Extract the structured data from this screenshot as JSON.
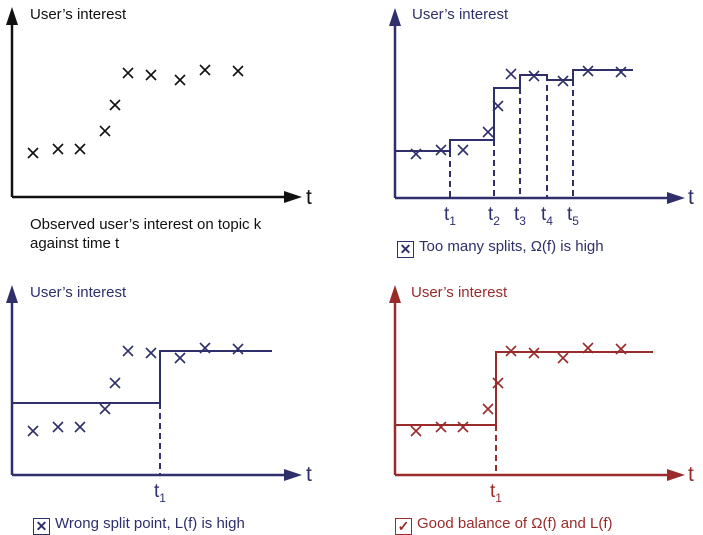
{
  "colors": {
    "black": "#111111",
    "navy": "#2e2f6b",
    "red": "#9a2b2b"
  },
  "panels": [
    {
      "ylabel": "User’s interest",
      "xlabel": "t",
      "caption_line1": "Observed user’s interest on topic k",
      "caption_line2": "against time t"
    },
    {
      "ylabel": "User’s interest",
      "xlabel": "t",
      "ticks": [
        "t",
        "t",
        "t",
        "t",
        "t"
      ],
      "tick_subs": [
        "1",
        "2",
        "3",
        "4",
        "5"
      ],
      "caption_icon": "x-box-icon",
      "caption": "Too many splits, Ω(f) is high"
    },
    {
      "ylabel": "User’s interest",
      "xlabel": "t",
      "ticks": [
        "t"
      ],
      "tick_subs": [
        "1"
      ],
      "caption_icon": "x-box-icon",
      "caption": "Wrong split point, L(f) is high"
    },
    {
      "ylabel": "User’s interest",
      "xlabel": "t",
      "ticks": [
        "t"
      ],
      "tick_subs": [
        "1"
      ],
      "caption_icon": "check-box-icon",
      "caption": "Good balance of Ω(f) and L(f)"
    }
  ]
}
